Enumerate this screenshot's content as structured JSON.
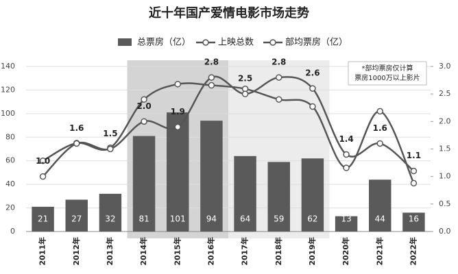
{
  "chart_data": {
    "type": "bar-line",
    "title": "近十年国产爱情电影市场走势",
    "categories": [
      "2011年",
      "2012年",
      "2013年",
      "2014年",
      "2015年",
      "2016年",
      "2017年",
      "2018年",
      "2019年",
      "2020年",
      "2021年",
      "2022年"
    ],
    "series": [
      {
        "name": "总票房（亿）",
        "type": "bar",
        "color": "#5a5a5a",
        "values": [
          21,
          27,
          32,
          81,
          101,
          94,
          64,
          59,
          62,
          13,
          44,
          16
        ]
      },
      {
        "name": "上映总数",
        "type": "line",
        "color": "#555555",
        "values": [
          60,
          75,
          71,
          112,
          125,
          124,
          121,
          112,
          106,
          54,
          102,
          41
        ]
      },
      {
        "name": "部均票房（亿）",
        "type": "line",
        "axis": "y2",
        "color": "#555555",
        "values": [
          1.0,
          1.6,
          1.5,
          2.0,
          1.9,
          2.8,
          2.5,
          2.8,
          2.6,
          1.4,
          1.6,
          1.1
        ],
        "value_labels": [
          "1.0",
          "1.6",
          "1.5",
          "2.0",
          "1.9",
          "2.8",
          "2.5",
          "2.8",
          "2.6",
          "1.4",
          "1.6",
          "1.1"
        ]
      }
    ],
    "ylim": [
      0,
      140
    ],
    "yticks": [
      0,
      20,
      40,
      60,
      80,
      100,
      120,
      140
    ],
    "y2lim": [
      0,
      3
    ],
    "y2ticks": [
      {
        "value": 0,
        "label": "0.0"
      },
      0.5,
      {
        "value": 1,
        "label": "1.0"
      },
      1.5,
      {
        "value": 2,
        "label": "2.0"
      },
      2.5,
      {
        "value": 3,
        "label": "3.0"
      }
    ],
    "grid": true,
    "annotation": [
      "*部均票房仅计算",
      "票房1000万以上影片"
    ]
  }
}
